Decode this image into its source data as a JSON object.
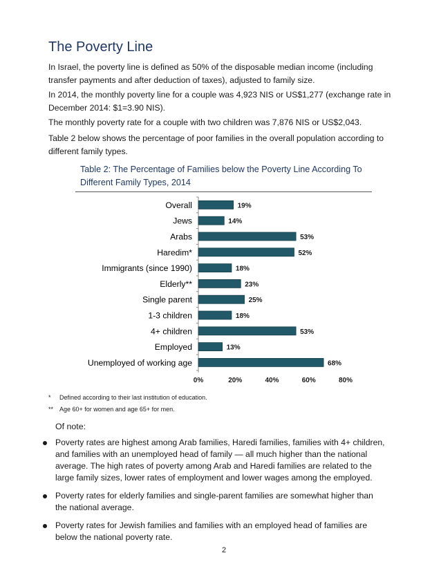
{
  "heading": "The Poverty Line",
  "paragraphs": [
    "In Israel, the poverty line is defined as 50% of the disposable median income (including transfer payments and after deduction of taxes), adjusted to family size.",
    "In 2014, the monthly poverty line for a couple was 4,923 NIS or US$1,277 (exchange rate in December 2014: $1=3.90 NIS).",
    "The monthly poverty rate for a couple with two children was 7,876 NIS or US$2,043.",
    "Table 2 below shows the percentage of poor families in the overall population according to different family types."
  ],
  "table_title": "Table 2: The Percentage of Families below the Poverty Line According To Different Family Types, 2014",
  "chart_data": {
    "type": "bar",
    "orientation": "horizontal",
    "title": "Table 2: The Percentage of Families below the Poverty Line According To Different Family Types, 2014",
    "categories": [
      "Overall",
      "Jews",
      "Arabs",
      "Haredim*",
      "Immigrants (since 1990)",
      "Elderly**",
      "Single parent",
      "1-3 children",
      "4+ children",
      "Employed",
      "Unemployed of working age"
    ],
    "values": [
      19,
      14,
      53,
      52,
      18,
      23,
      25,
      18,
      53,
      13,
      68
    ],
    "value_labels": [
      "19%",
      "14%",
      "53%",
      "52%",
      "18%",
      "23%",
      "25%",
      "18%",
      "53%",
      "13%",
      "68%"
    ],
    "xlim": [
      0,
      80
    ],
    "x_ticks": [
      "0%",
      "20%",
      "40%",
      "60%",
      "80%"
    ],
    "xlabel": "",
    "ylabel": "",
    "grid": false,
    "bar_color": "#215968"
  },
  "footnotes": [
    {
      "mark": "*",
      "text": "Defined according to their last institution of education."
    },
    {
      "mark": "**",
      "text": "Age 60+ for women and age 65+ for men."
    }
  ],
  "notes_heading": "Of note:",
  "bullets": [
    "Poverty rates are highest among Arab families, Haredi families, families with 4+ children, and families with an unemployed head of family — all much higher than the national average. The high rates of poverty among Arab and Haredi families are related to the large family sizes, lower rates of employment and lower wages among the employed.",
    "Poverty rates for elderly families and single-parent families are somewhat higher than the national average.",
    "Poverty rates for Jewish families and families with an employed head of families are below the national poverty rate."
  ],
  "page_number": "2"
}
